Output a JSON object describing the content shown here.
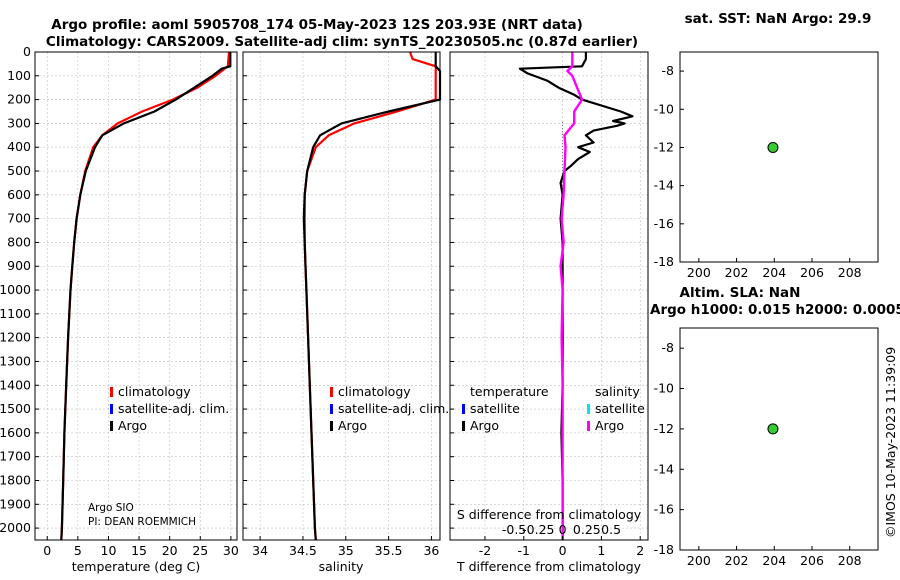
{
  "header": {
    "line1": "Argo profile: aoml 5905708_174 05-May-2023 12S 203.93E (NRT data)",
    "line2": "Climatology: CARS2009. Satellite-adj clim: synTS_20230505.nc (0.87d earlier)"
  },
  "colors": {
    "climatology": "#ff0000",
    "satellite": "#0000ff",
    "argo": "#000000",
    "sat_salinity": "#00e5ee",
    "argo_salinity": "#ff00ff",
    "marker": "#33cc33"
  },
  "depth_ticks": [
    "0",
    "100",
    "200",
    "300",
    "400",
    "500",
    "600",
    "700",
    "800",
    "900",
    "1000",
    "1100",
    "1200",
    "1300",
    "1400",
    "1500",
    "1600",
    "1700",
    "1800",
    "1900",
    "2000"
  ],
  "legend": {
    "climatology": "climatology",
    "satellite": "satellite-adj. clim.",
    "argo": "Argo",
    "temperature": "temperature",
    "salinity": "salinity",
    "satellite_short": "satellite"
  },
  "info": {
    "float_owner": "Argo SIO",
    "pi": "PI: DEAN ROEMMICH"
  },
  "credit": "©IMOS 10-May-2023 11:39:09",
  "chart_data": [
    {
      "type": "line",
      "title": "",
      "xlabel": "temperature (deg C)",
      "ylabel": "depth",
      "xlim": [
        -2,
        31
      ],
      "ylim": [
        2050,
        0
      ],
      "xticks": [
        0,
        5,
        10,
        15,
        20,
        25,
        30
      ],
      "xtick_labels": [
        "0",
        "5",
        "10",
        "15",
        "20",
        "25",
        "30"
      ],
      "series": [
        {
          "name": "climatology",
          "depth": [
            0,
            60,
            100,
            150,
            200,
            250,
            300,
            350,
            400,
            500,
            600,
            700,
            800,
            900,
            1000,
            1200,
            1400,
            1600,
            1800,
            2000,
            2050
          ],
          "values": [
            29.7,
            29.5,
            27.5,
            24.5,
            20.5,
            15.5,
            11.5,
            9.0,
            7.5,
            6.2,
            5.4,
            4.8,
            4.4,
            4.1,
            3.8,
            3.4,
            3.1,
            2.8,
            2.6,
            2.4,
            2.3
          ]
        },
        {
          "name": "Argo",
          "depth": [
            0,
            60,
            70,
            100,
            150,
            200,
            250,
            300,
            350,
            400,
            500,
            600,
            700,
            800,
            900,
            1000,
            1200,
            1400,
            1600,
            1800,
            2000,
            2050
          ],
          "values": [
            29.9,
            29.9,
            28.5,
            27.0,
            24.0,
            21.0,
            17.5,
            12.5,
            9.0,
            7.8,
            6.3,
            5.4,
            4.8,
            4.4,
            4.1,
            3.8,
            3.4,
            3.1,
            2.8,
            2.6,
            2.4,
            2.3
          ]
        }
      ]
    },
    {
      "type": "line",
      "title": "",
      "xlabel": "salinity",
      "ylabel": "depth",
      "xlim": [
        33.8,
        36.1
      ],
      "ylim": [
        2050,
        0
      ],
      "xticks": [
        34,
        34.5,
        35,
        35.5,
        36
      ],
      "xtick_labels": [
        "34",
        "34.5",
        "35",
        "35.5",
        "36"
      ],
      "series": [
        {
          "name": "climatology",
          "depth": [
            0,
            30,
            60,
            200,
            250,
            300,
            350,
            400,
            500,
            600,
            700,
            800,
            900,
            1000,
            1200,
            1400,
            1600,
            1800,
            2000,
            2050
          ],
          "values": [
            35.75,
            35.78,
            36.05,
            36.05,
            35.6,
            35.1,
            34.8,
            34.65,
            34.55,
            34.52,
            34.52,
            34.52,
            34.53,
            34.54,
            34.56,
            34.58,
            34.6,
            34.62,
            34.64,
            34.65
          ]
        },
        {
          "name": "Argo",
          "depth": [
            0,
            60,
            80,
            200,
            250,
            300,
            350,
            400,
            500,
            600,
            700,
            800,
            900,
            1000,
            1200,
            1400,
            1600,
            1800,
            2000,
            2050
          ],
          "values": [
            36.05,
            36.05,
            36.1,
            36.1,
            35.5,
            34.95,
            34.7,
            34.62,
            34.55,
            34.52,
            34.51,
            34.52,
            34.53,
            34.54,
            34.56,
            34.58,
            34.6,
            34.62,
            34.64,
            34.65
          ]
        }
      ]
    },
    {
      "type": "line",
      "title": "",
      "xlabel": "T difference from climatology",
      "ylabel": "depth",
      "secondary_axis_label": "S difference from climatology",
      "xlim": [
        -2.9,
        2.2
      ],
      "ylim": [
        2050,
        0
      ],
      "xticks": [
        -2,
        -1,
        0,
        1,
        2
      ],
      "xtick_labels": [
        "-2",
        "-1",
        "0",
        "1",
        "2"
      ],
      "secondary_ticks": [
        -0.5,
        -0.25,
        0,
        0.25,
        0.5
      ],
      "secondary_tick_labels": [
        "-0.5",
        "-0.25",
        "0",
        "0.25",
        "0.5"
      ],
      "series": [
        {
          "name": "temperature Argo",
          "depth": [
            0,
            30,
            60,
            70,
            90,
            120,
            150,
            180,
            200,
            250,
            270,
            290,
            300,
            310,
            330,
            350,
            380,
            400,
            420,
            450,
            480,
            500,
            550,
            600,
            700,
            800,
            1000,
            1200,
            1400,
            1600,
            1800,
            2000,
            2050
          ],
          "values": [
            0.6,
            0.6,
            0.5,
            -1.1,
            -0.9,
            -0.4,
            -0.1,
            0.3,
            0.5,
            1.5,
            1.8,
            1.3,
            1.6,
            1.4,
            0.8,
            0.6,
            0.8,
            0.4,
            0.7,
            0.4,
            0.2,
            0.05,
            -0.05,
            0.0,
            -0.05,
            0.0,
            0.0,
            0.0,
            0.0,
            -0.03,
            0.0,
            0.0,
            0.0
          ]
        },
        {
          "name": "salinity Argo",
          "depth": [
            0,
            60,
            80,
            100,
            150,
            200,
            250,
            300,
            350,
            400,
            500,
            600,
            700,
            800,
            900,
            1000,
            1200,
            1400,
            1600,
            1800,
            2000,
            2050
          ],
          "values": [
            0.1,
            0.1,
            0.05,
            0.1,
            0.15,
            0.2,
            0.12,
            0.12,
            0.02,
            0.03,
            0.02,
            0.01,
            -0.01,
            0.01,
            -0.02,
            0.0,
            -0.01,
            0.0,
            0.0,
            0.0,
            0.0,
            0.0
          ]
        }
      ]
    },
    {
      "type": "scatter",
      "title": "sat. SST: NaN Argo: 29.9",
      "xlim": [
        199,
        209.5
      ],
      "ylim": [
        -18,
        -7
      ],
      "xticks": [
        200,
        202,
        204,
        206,
        208
      ],
      "yticks": [
        -8,
        -10,
        -12,
        -14,
        -16,
        -18
      ],
      "xtick_labels": [
        "200",
        "202",
        "204",
        "206",
        "208"
      ],
      "ytick_labels": [
        "-8",
        "-10",
        "-12",
        "-14",
        "-16",
        "-18"
      ],
      "points": [
        {
          "x": 203.93,
          "y": -12
        }
      ]
    },
    {
      "type": "scatter",
      "title": "Altim. SLA: NaN",
      "subtitle": "Argo h1000: 0.015 h2000: 0.0005",
      "xlim": [
        199,
        209.5
      ],
      "ylim": [
        -18,
        -7
      ],
      "xticks": [
        200,
        202,
        204,
        206,
        208
      ],
      "yticks": [
        -8,
        -10,
        -12,
        -14,
        -16,
        -18
      ],
      "xtick_labels": [
        "200",
        "202",
        "204",
        "206",
        "208"
      ],
      "ytick_labels": [
        "-8",
        "-10",
        "-12",
        "-14",
        "-16",
        "-18"
      ],
      "points": [
        {
          "x": 203.93,
          "y": -12
        }
      ]
    }
  ]
}
